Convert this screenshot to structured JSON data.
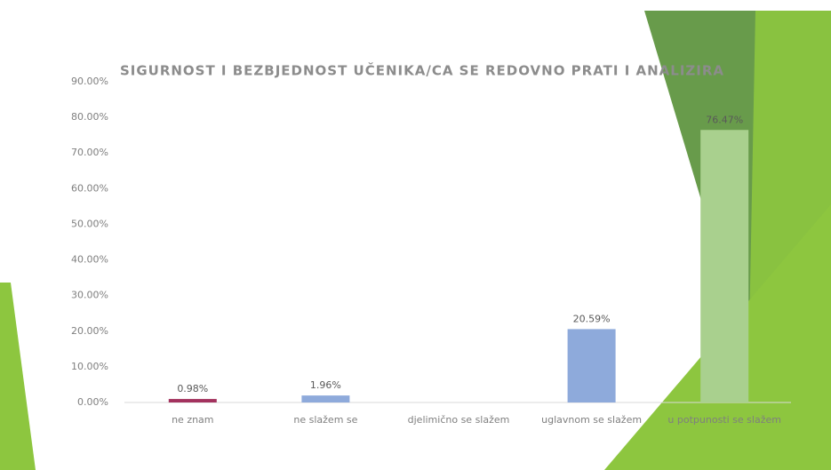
{
  "chart_data": {
    "type": "bar",
    "title": "SIGURNOST I BEZBJEDNOST UČENIKA/CA SE REDOVNO PRATI I ANALIZIRA",
    "categories": [
      "ne znam",
      "ne slažem se",
      "djelimično se slažem",
      "uglavnom se slažem",
      "u potpunosti se slažem"
    ],
    "values": [
      0.98,
      1.96,
      0,
      20.59,
      76.47
    ],
    "value_labels": [
      "0.98%",
      "1.96%",
      null,
      "20.59%",
      "76.47%"
    ],
    "colors": [
      "#a3325e",
      "#8eaadb",
      "#8eaadb",
      "#8eaadb",
      "#a9d08e"
    ],
    "ylim": [
      0,
      90
    ],
    "yticks": [
      {
        "value": 0,
        "label": "0.00%"
      },
      {
        "value": 10,
        "label": "10.00%"
      },
      {
        "value": 20,
        "label": "20.00%"
      },
      {
        "value": 30,
        "label": "30.00%"
      },
      {
        "value": 40,
        "label": "40.00%"
      },
      {
        "value": 50,
        "label": "50.00%"
      },
      {
        "value": 60,
        "label": "60.00%"
      },
      {
        "value": 70,
        "label": "70.00%"
      },
      {
        "value": 80,
        "label": "80.00%"
      },
      {
        "value": 90,
        "label": "90.00%"
      }
    ],
    "grid": false
  }
}
